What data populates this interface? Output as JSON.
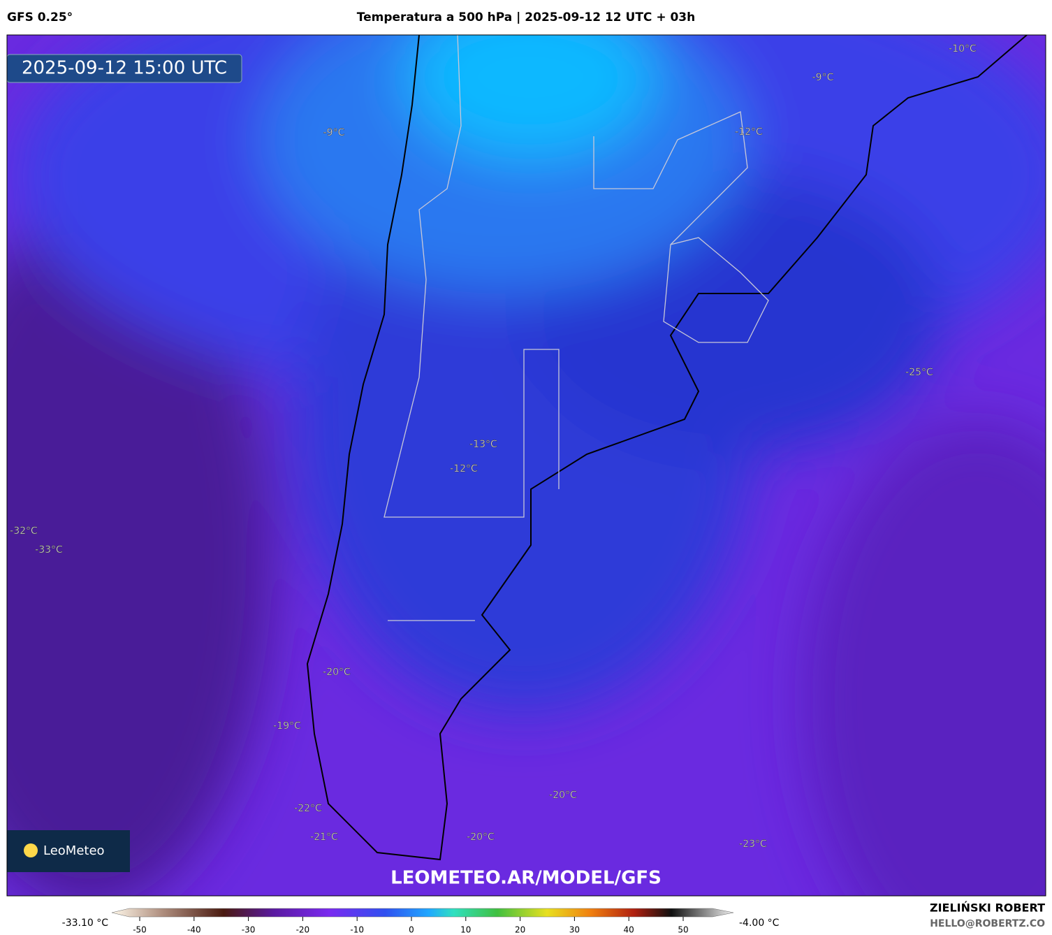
{
  "header": {
    "model": "GFS 0.25°",
    "title": "Temperatura a 500 hPa | 2025-09-12 12 UTC + 03h"
  },
  "map": {
    "timestamp": "2025-09-12 15:00 UTC",
    "labels": [
      "-9°C",
      "-10°C",
      "-9°C",
      "-12°C",
      "-25°C",
      "-13°C",
      "-12°C",
      "-32°C",
      "-33°C",
      "-20°C",
      "-19°C",
      "-20°C",
      "-22°C",
      "-21°C",
      "-20°C",
      "-23°C"
    ],
    "watermark": "LEOMETEO.AR/MODEL/GFS",
    "logo": "LeoMeteo"
  },
  "colorbar": {
    "min_label": "-33.10 °C",
    "max_label": "-4.00 °C",
    "ticks": [
      -50,
      -40,
      -30,
      -20,
      -10,
      0,
      10,
      20,
      30,
      40,
      50
    ]
  },
  "credits": {
    "name": "ZIELIŃSKI ROBERT",
    "email": "HELLO@ROBERTZ.CO"
  }
}
